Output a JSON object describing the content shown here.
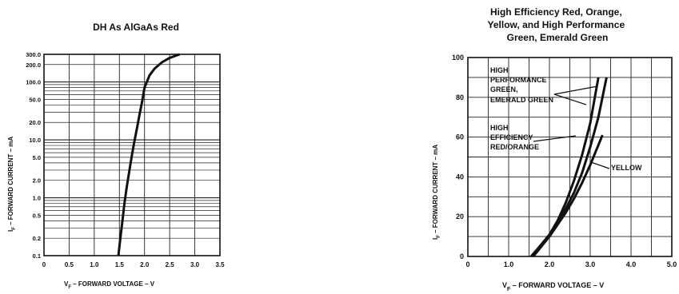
{
  "chart_data": [
    {
      "type": "line",
      "title": "DH As AlGaAs Red",
      "xlabel": "Vₓ – FORWARD VOLTAGE – V",
      "ylabel": "Iₓ – FORWARD CURRENT – mA",
      "x_scale": "linear",
      "y_scale": "log",
      "xlim": [
        0,
        3.5
      ],
      "ylim": [
        0.1,
        300
      ],
      "x_ticks": [
        "0",
        "0.5",
        "1.0",
        "1.5",
        "2.0",
        "2.5",
        "3.0",
        "3.5"
      ],
      "y_ticks": [
        "300.0",
        "200.0",
        "100.0",
        "50.0",
        "20.0",
        "10.0",
        "5.0",
        "2.0",
        "1.0",
        "0.5",
        "0.2",
        "0.1"
      ],
      "grid": true,
      "series": [
        {
          "x": [
            1.48,
            1.52,
            1.56,
            1.6,
            1.65,
            1.7,
            1.75,
            1.8,
            1.85,
            1.9,
            1.95,
            2.0,
            2.1,
            2.2,
            2.35,
            2.5,
            2.7
          ],
          "y": [
            0.1,
            0.2,
            0.4,
            0.8,
            1.6,
            3.0,
            5.5,
            9.5,
            16,
            27,
            45,
            80,
            130,
            170,
            220,
            260,
            300
          ]
        }
      ]
    },
    {
      "type": "line",
      "title": "High Efficiency Red, Orange, Yellow, and High Performance Green, Emerald Green",
      "xlabel": "V_F – FORWARD VOLTAGE – V",
      "ylabel": "I_F – FORWARD CURRENT – mA",
      "xlim": [
        0,
        5.0
      ],
      "ylim": [
        0,
        100
      ],
      "x_ticks": [
        "0",
        "1.0",
        "2.0",
        "3.0",
        "4.0",
        "5.0"
      ],
      "y_ticks": [
        "0",
        "20",
        "40",
        "60",
        "80",
        "100"
      ],
      "grid": true,
      "series": [
        {
          "name": "HIGH PERFORMANCE GREEN, EMERALD GREEN",
          "x": [
            1.6,
            1.8,
            2.0,
            2.2,
            2.4,
            2.6,
            2.8,
            3.0,
            3.2
          ],
          "y": [
            0,
            5,
            11,
            18,
            27,
            38,
            51,
            67,
            90
          ]
        },
        {
          "name": "HIGH EFFICIENCY RED/ORANGE",
          "x": [
            1.55,
            1.8,
            2.0,
            2.2,
            2.4,
            2.6,
            2.8,
            3.0,
            3.2,
            3.4
          ],
          "y": [
            0,
            6,
            11,
            17,
            24,
            32,
            42,
            55,
            70,
            90
          ]
        },
        {
          "name": "YELLOW",
          "x": [
            1.6,
            1.8,
            2.0,
            2.2,
            2.4,
            2.6,
            2.8,
            3.0,
            3.2,
            3.3
          ],
          "y": [
            0,
            5,
            10,
            16,
            22,
            29,
            37,
            46,
            56,
            61
          ]
        }
      ],
      "annotations": [
        "HIGH",
        "PERFORMANCE",
        "GREEN,",
        "EMERALD GREEN",
        "HIGH",
        "EFFICIENCY",
        "RED/ORANGE",
        "YELLOW"
      ]
    }
  ],
  "labels": {
    "left_xlabel_main": "V",
    "left_xlabel_sub": "F",
    "left_xlabel_rest": " – FORWARD VOLTAGE – V",
    "left_ylabel_main": "I",
    "left_ylabel_sub": "F",
    "left_ylabel_rest": " – FORWARD CURRENT – mA",
    "right_title_lines": [
      "High Efficiency Red, Orange,",
      "Yellow, and High Performance",
      "Green, Emerald Green"
    ],
    "right_xlabel_main": "V",
    "right_xlabel_sub": "F",
    "right_xlabel_rest": " – FORWARD VOLTAGE – V",
    "right_ylabel_main": "I",
    "right_ylabel_sub": "F",
    "right_ylabel_rest": " – FORWARD CURRENT – mA"
  }
}
